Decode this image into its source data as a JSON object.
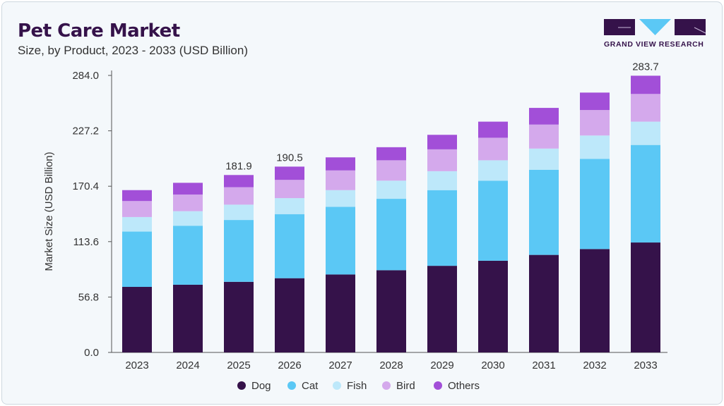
{
  "header": {
    "title": "Pet Care Market",
    "subtitle": "Size, by Product, 2023 - 2033 (USD Billion)",
    "logo_text": "GRAND VIEW RESEARCH"
  },
  "chart_data": {
    "type": "bar",
    "stacked": true,
    "title": "Pet Care Market",
    "subtitle": "Size, by Product, 2023 - 2033 (USD Billion)",
    "xlabel": "",
    "ylabel": "Market Size (USD Billion)",
    "ylim": [
      0,
      284
    ],
    "yticks": [
      "0.0",
      "56.8",
      "113.6",
      "170.4",
      "227.2",
      "284.0"
    ],
    "categories": [
      "2023",
      "2024",
      "2025",
      "2026",
      "2027",
      "2028",
      "2029",
      "2030",
      "2031",
      "2032",
      "2033"
    ],
    "series": [
      {
        "name": "Dog",
        "color": "#35124a",
        "values": [
          67.2,
          69.4,
          72.4,
          76.1,
          79.9,
          84.3,
          88.8,
          94.0,
          100.0,
          106.0,
          112.7
        ]
      },
      {
        "name": "Cat",
        "color": "#5bc8f5",
        "values": [
          56.7,
          60.5,
          63.4,
          65.7,
          69.4,
          73.2,
          77.6,
          82.1,
          87.3,
          92.5,
          100.0
        ]
      },
      {
        "name": "Fish",
        "color": "#bde8fa",
        "values": [
          14.9,
          14.9,
          15.7,
          16.4,
          17.1,
          18.6,
          19.4,
          20.9,
          21.7,
          23.9,
          23.9
        ]
      },
      {
        "name": "Bird",
        "color": "#d4a9ec",
        "values": [
          16.4,
          17.1,
          17.9,
          18.7,
          20.2,
          20.9,
          22.4,
          23.1,
          24.6,
          26.1,
          28.4
        ]
      },
      {
        "name": "Others",
        "color": "#a24fd8",
        "values": [
          11.2,
          12.0,
          12.5,
          13.6,
          13.4,
          13.4,
          14.9,
          16.5,
          17.1,
          17.9,
          18.7
        ]
      }
    ],
    "annotations": [
      {
        "category": "2025",
        "text": "181.9"
      },
      {
        "category": "2026",
        "text": "190.5"
      },
      {
        "category": "2033",
        "text": "283.7"
      }
    ],
    "legend": "bottom",
    "grid": false
  }
}
